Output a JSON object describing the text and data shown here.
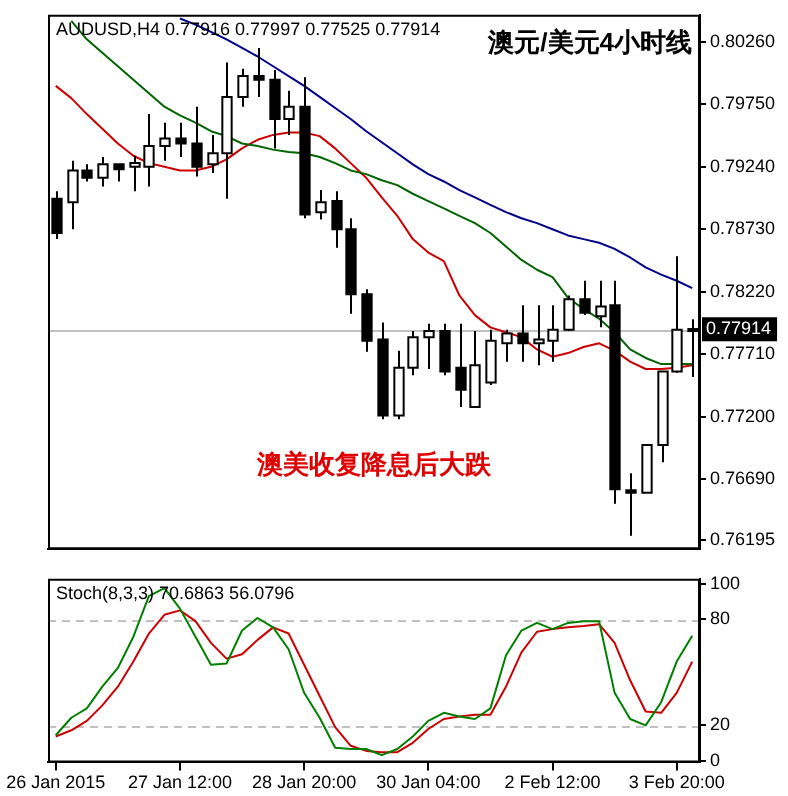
{
  "chart_data": [
    {
      "type": "candlestick",
      "title": "AUDUSD,H4 0.77916 0.77997 0.77525 0.77914",
      "subtitle": "澳元/美元4小时线",
      "annotations": [
        "澳美收复降息后大跌"
      ],
      "categories": [
        null,
        null,
        null,
        null,
        null,
        null,
        null,
        null,
        null,
        null,
        null,
        null,
        null,
        null,
        null,
        null,
        null,
        null,
        null,
        null,
        null,
        null,
        null,
        null,
        null,
        null,
        null,
        null,
        null,
        null,
        null,
        null,
        null,
        null,
        null,
        null,
        null,
        null,
        null,
        null,
        null,
        null
      ],
      "ohlc": [
        [
          0.7898,
          0.7904,
          0.7865,
          0.787
        ],
        [
          0.7895,
          0.7929,
          0.7873,
          0.7921
        ],
        [
          0.7921,
          0.7926,
          0.7912,
          0.7915
        ],
        [
          0.7915,
          0.7932,
          0.7908,
          0.7926
        ],
        [
          0.7926,
          0.7926,
          0.7912,
          0.7922
        ],
        [
          0.7924,
          0.7933,
          0.7904,
          0.7927
        ],
        [
          0.7924,
          0.7967,
          0.7908,
          0.7941
        ],
        [
          0.7941,
          0.796,
          0.7929,
          0.7947
        ],
        [
          0.7947,
          0.796,
          0.7932,
          0.7943
        ],
        [
          0.7943,
          0.7973,
          0.7916,
          0.7924
        ],
        [
          0.7926,
          0.795,
          0.7919,
          0.7935
        ],
        [
          0.7935,
          0.8009,
          0.7898,
          0.7981
        ],
        [
          0.7981,
          0.8004,
          0.7973,
          0.7998
        ],
        [
          0.7998,
          0.8021,
          0.7981,
          0.7995
        ],
        [
          0.7995,
          0.8003,
          0.7939,
          0.7963
        ],
        [
          0.7963,
          0.7986,
          0.795,
          0.7973
        ],
        [
          0.7973,
          0.7997,
          0.7882,
          0.7885
        ],
        [
          0.7887,
          0.7905,
          0.7881,
          0.7895
        ],
        [
          0.7896,
          0.7904,
          0.7858,
          0.7873
        ],
        [
          0.7873,
          0.7882,
          0.7804,
          0.782
        ],
        [
          0.782,
          0.7824,
          0.7773,
          0.7782
        ],
        [
          0.7783,
          0.7797,
          0.7718,
          0.7721
        ],
        [
          0.7721,
          0.7774,
          0.7718,
          0.776
        ],
        [
          0.776,
          0.779,
          0.7754,
          0.7785
        ],
        [
          0.7785,
          0.7796,
          0.7759,
          0.779
        ],
        [
          0.779,
          0.7796,
          0.7754,
          0.7757
        ],
        [
          0.776,
          0.7796,
          0.7728,
          0.7742
        ],
        [
          0.7728,
          0.779,
          0.7728,
          0.7762
        ],
        [
          0.7748,
          0.7791,
          0.7746,
          0.7782
        ],
        [
          0.778,
          0.7791,
          0.7765,
          0.7788
        ],
        [
          0.7788,
          0.7811,
          0.7765,
          0.778
        ],
        [
          0.778,
          0.7811,
          0.7762,
          0.7783
        ],
        [
          0.7782,
          0.7811,
          0.7765,
          0.7791
        ],
        [
          0.7791,
          0.7819,
          0.779,
          0.7816
        ],
        [
          0.7816,
          0.7831,
          0.7803,
          0.7805
        ],
        [
          0.7802,
          0.7831,
          0.7793,
          0.781
        ],
        [
          0.7811,
          0.7831,
          0.7649,
          0.7661
        ],
        [
          0.766,
          0.7674,
          0.7623,
          0.7658
        ],
        [
          0.7658,
          0.7697,
          0.7658,
          0.7697
        ],
        [
          0.7697,
          0.7757,
          0.7683,
          0.7757
        ],
        [
          0.7757,
          0.7851,
          0.7756,
          0.7791
        ],
        [
          0.77916,
          0.77997,
          0.77525,
          0.77914
        ]
      ],
      "series": [
        {
          "type": "line",
          "color": "#00008b",
          "values": [
            null,
            null,
            null,
            null,
            null,
            null,
            null,
            null,
            0.8045,
            0.804,
            0.8034,
            0.8028,
            0.8021,
            0.8014,
            0.8006,
            0.7998,
            0.799,
            0.7981,
            0.7972,
            0.7963,
            0.7953,
            0.7944,
            0.7935,
            0.7926,
            0.7918,
            0.7912,
            0.7905,
            0.7899,
            0.7893,
            0.7887,
            0.7882,
            0.7878,
            0.7873,
            0.7868,
            0.7865,
            0.7862,
            0.7857,
            0.785,
            0.7842,
            0.7836,
            0.7831,
            0.7825
          ]
        },
        {
          "type": "line",
          "color": "#006400",
          "values": [
            null,
            0.8043,
            0.8028,
            0.8017,
            0.8006,
            0.7995,
            0.7984,
            0.7973,
            0.7966,
            0.796,
            0.7953,
            0.7949,
            0.7943,
            0.7941,
            0.7938,
            0.7936,
            0.7935,
            0.7932,
            0.7927,
            0.7921,
            0.7918,
            0.7913,
            0.7909,
            0.7902,
            0.7896,
            0.789,
            0.7884,
            0.7878,
            0.787,
            0.7859,
            0.7848,
            0.784,
            0.7834,
            0.7817,
            0.7808,
            0.78,
            0.7789,
            0.7775,
            0.7768,
            0.7763,
            0.7763,
            0.7763
          ]
        },
        {
          "type": "line",
          "color": "#cc0000",
          "values": [
            0.799,
            0.798,
            0.7967,
            0.7955,
            0.7943,
            0.7933,
            0.7927,
            0.7924,
            0.7921,
            0.7921,
            0.7924,
            0.793,
            0.7939,
            0.7946,
            0.795,
            0.7952,
            0.7952,
            0.7949,
            0.7939,
            0.7927,
            0.7915,
            0.7899,
            0.7884,
            0.7865,
            0.7854,
            0.7847,
            0.7819,
            0.7803,
            0.7793,
            0.7789,
            0.7785,
            0.7775,
            0.7769,
            0.7772,
            0.7777,
            0.778,
            0.7774,
            0.7765,
            0.7759,
            0.7759,
            0.776,
            0.7762
          ]
        }
      ],
      "ylim": [
        0.7612,
        0.8048
      ],
      "yticks": [
        {
          "value": 0.8026,
          "label": "0.80260"
        },
        {
          "value": 0.7975,
          "label": "0.79750"
        },
        {
          "value": 0.7924,
          "label": "0.79240"
        },
        {
          "value": 0.7873,
          "label": "0.78730"
        },
        {
          "value": 0.7822,
          "label": "0.78220"
        },
        {
          "value": 0.7771,
          "label": "0.77710"
        },
        {
          "value": 0.772,
          "label": "0.77200"
        },
        {
          "value": 0.7669,
          "label": "0.76690"
        },
        {
          "value": 0.76195,
          "label": "0.76195"
        }
      ],
      "ref_lines": [
        {
          "axis": "y",
          "value": 0.77914,
          "label": "0.77914",
          "color": "#c0c0c0"
        }
      ],
      "tick_labels": "y",
      "marker": "none"
    },
    {
      "type": "line",
      "title": "Stoch(8,3,3) 70.6863 56.0796",
      "categories": [
        "26 Jan 2015",
        null,
        null,
        null,
        null,
        null,
        null,
        null,
        "27 Jan 12:00",
        null,
        null,
        null,
        null,
        null,
        null,
        null,
        "28 Jan 20:00",
        null,
        null,
        null,
        null,
        null,
        null,
        null,
        "30 Jan 04:00",
        null,
        null,
        null,
        null,
        null,
        null,
        null,
        "2 Feb 12:00",
        null,
        null,
        null,
        null,
        null,
        null,
        null,
        "3 Feb 20:00",
        null
      ],
      "series": [
        {
          "color": "#008000",
          "values": [
            14.4,
            24.3,
            29.6,
            41.9,
            52.5,
            70.2,
            93.2,
            97.7,
            86.1,
            70.2,
            54.3,
            55.0,
            73.7,
            80.8,
            75.5,
            63.1,
            38.4,
            24.3,
            7.3,
            6.6,
            6.6,
            3.1,
            6.6,
            13.7,
            22.5,
            27.1,
            25.0,
            23.6,
            29.6,
            59.6,
            73.7,
            78.0,
            74.5,
            78.0,
            79.0,
            79.0,
            38.4,
            23.6,
            20.0,
            33.1,
            56.1,
            70.6863
          ]
        },
        {
          "color": "#cc0000",
          "values": [
            13.7,
            17.2,
            22.5,
            31.3,
            41.9,
            56.1,
            72.0,
            82.6,
            85.1,
            79.0,
            66.7,
            57.8,
            60.3,
            68.4,
            75.5,
            72.0,
            54.3,
            36.6,
            19.0,
            8.4,
            5.5,
            4.8,
            4.8,
            10.1,
            17.9,
            23.6,
            25.0,
            26.0,
            26.0,
            41.9,
            61.3,
            73.0,
            74.5,
            75.5,
            76.2,
            77.3,
            66.7,
            45.5,
            27.8,
            27.1,
            38.4,
            56.0796
          ]
        }
      ],
      "ylim": [
        -1,
        103
      ],
      "yticks": [
        0,
        20,
        80,
        100
      ],
      "ref_lines": [
        {
          "axis": "y",
          "value": 80,
          "color": "#c0c0c0",
          "line_style": "dashed"
        },
        {
          "axis": "y",
          "value": 20,
          "color": "#c0c0c0",
          "line_style": "dashed"
        }
      ],
      "marker": "none"
    }
  ]
}
